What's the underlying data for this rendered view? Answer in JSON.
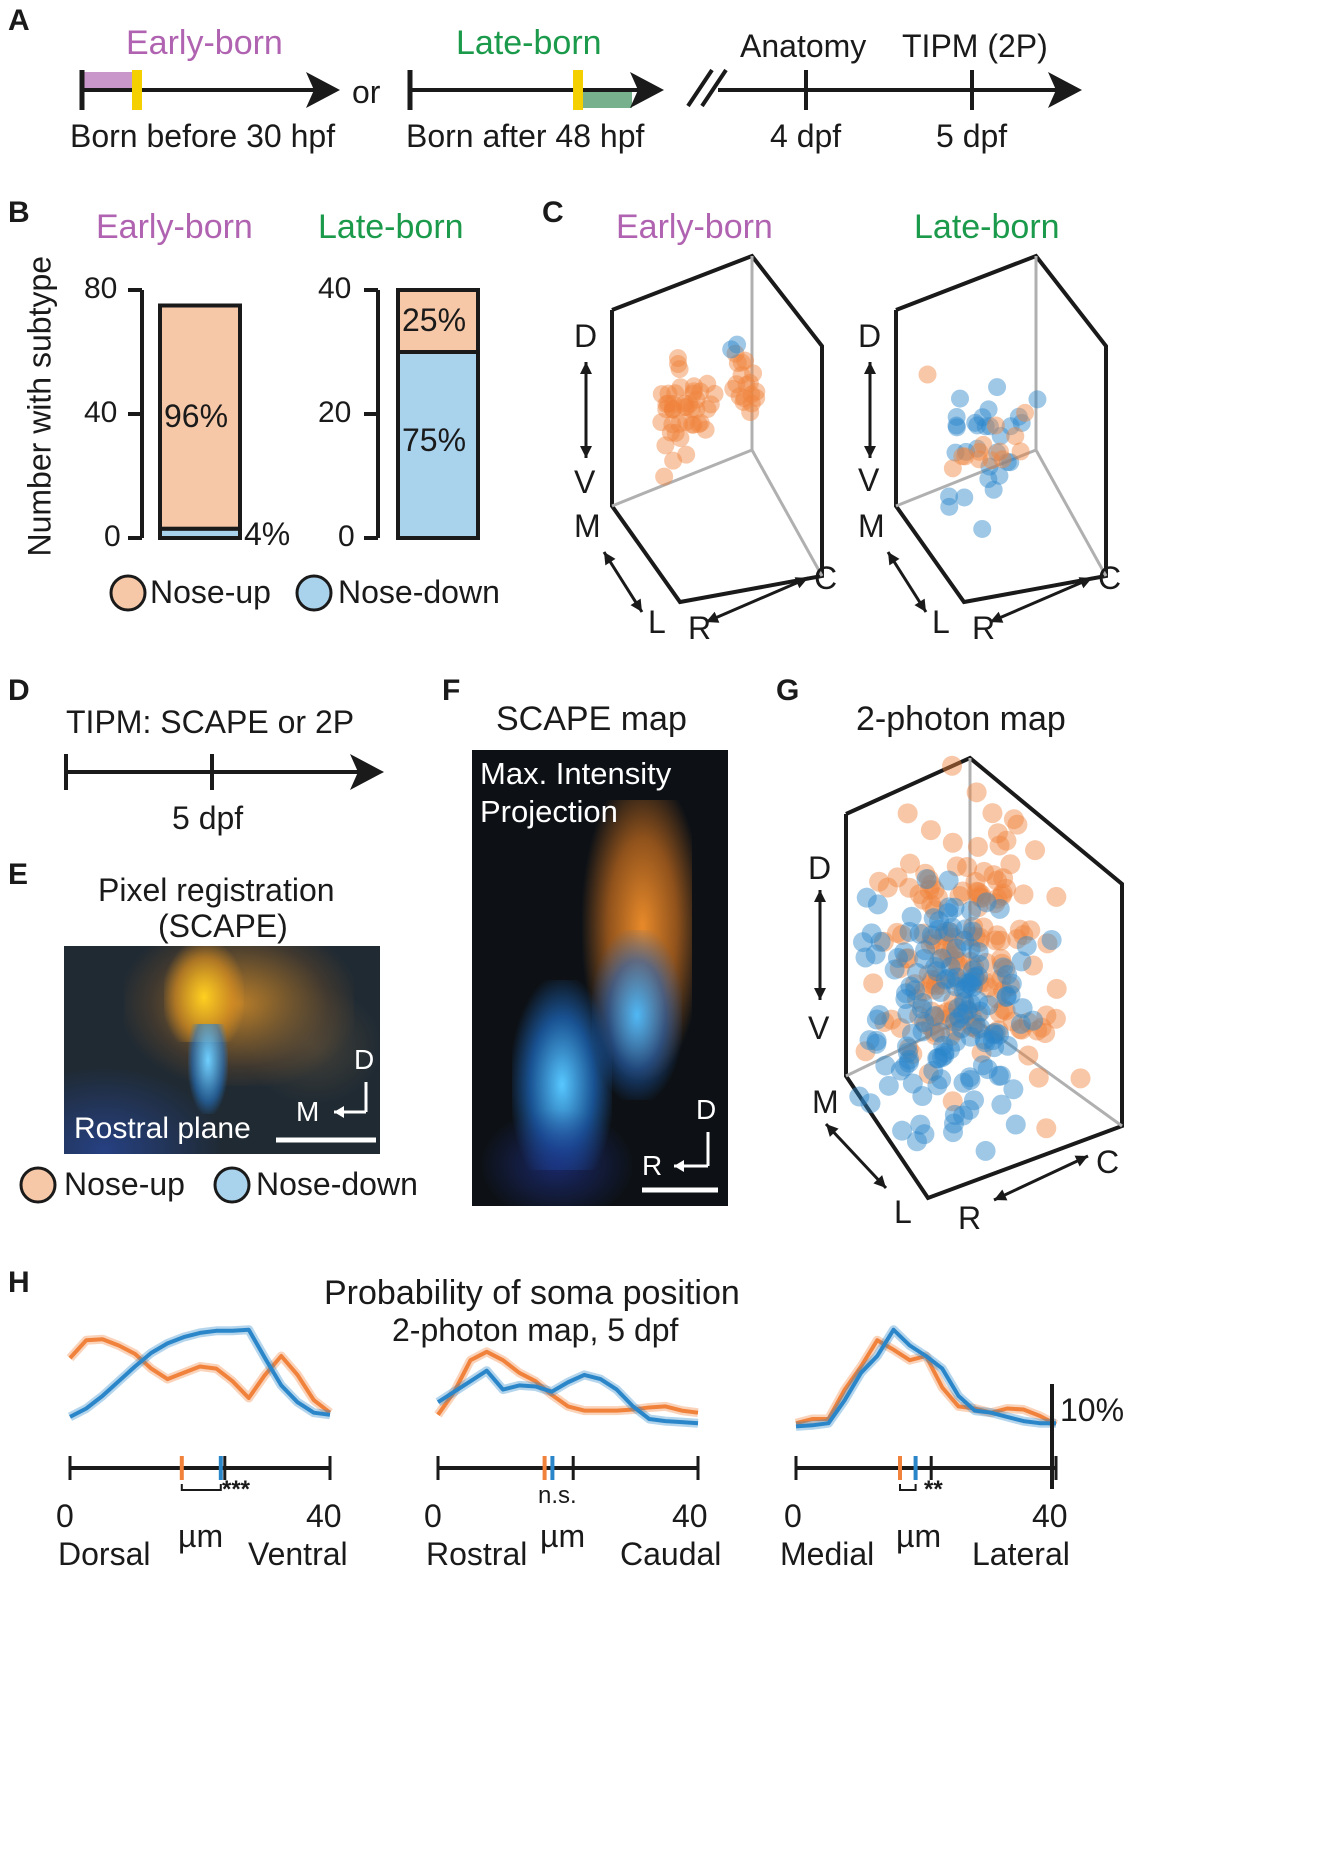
{
  "colors": {
    "nose_up": "#f0823c",
    "nose_up_fill": "#f6c8a8",
    "nose_down": "#2a86c9",
    "nose_down_fill": "#a9d2ec",
    "early": "#b063b0",
    "late": "#1a9a4a",
    "marker": "#f5d000"
  },
  "panelA": {
    "label": "A",
    "early": "Early-born",
    "late": "Late-born",
    "or": "or",
    "early_caption": "Born before 30 hpf",
    "late_caption": "Born after 48 hpf",
    "anatomy": "Anatomy",
    "tipm": "TIPM (2P)",
    "d4": "4 dpf",
    "d5": "5 dpf"
  },
  "panelB": {
    "label": "B",
    "early": "Early-born",
    "late": "Late-born",
    "ylabel": "Number with subtype",
    "early_ticks": [
      "0",
      "40",
      "80"
    ],
    "late_ticks": [
      "0",
      "20",
      "40"
    ],
    "early_up_pct": "96%",
    "early_down_pct": "4%",
    "late_up_pct": "25%",
    "late_down_pct": "75%",
    "legend_up": "Nose-up",
    "legend_down": "Nose-down"
  },
  "chart_data": [
    {
      "type": "bar",
      "stacked": true,
      "title": "Early-born",
      "ylabel": "Number with subtype",
      "ylim": [
        0,
        80
      ],
      "categories": [
        "Early-born"
      ],
      "series": [
        {
          "name": "Nose-down",
          "values": [
            3
          ]
        },
        {
          "name": "Nose-up",
          "values": [
            72
          ]
        }
      ]
    },
    {
      "type": "bar",
      "stacked": true,
      "title": "Late-born",
      "ylim": [
        0,
        40
      ],
      "categories": [
        "Late-born"
      ],
      "series": [
        {
          "name": "Nose-down",
          "values": [
            30
          ]
        },
        {
          "name": "Nose-up",
          "values": [
            10
          ]
        }
      ]
    },
    {
      "type": "line",
      "title": "Probability of soma position",
      "subtitle": "2-photon map, 5 dpf",
      "scale_bar": "10%",
      "xlabel": "µm",
      "x_ticks": [
        "0",
        "40"
      ],
      "x_end_labels": [
        "Dorsal",
        "Ventral"
      ],
      "significance": "***",
      "x": [
        0,
        2.5,
        5,
        7.5,
        10,
        12.5,
        15,
        17.5,
        20,
        22.5,
        25,
        27.5,
        30,
        32.5,
        35,
        37.5,
        40
      ],
      "series": [
        {
          "name": "Nose-up",
          "values": [
            7.8,
            9.5,
            9.6,
            9,
            8.2,
            6.8,
            5.8,
            6.4,
            7,
            6.8,
            5.6,
            4,
            6.2,
            8,
            6.2,
            3.8,
            2.6
          ]
        },
        {
          "name": "Nose-down",
          "values": [
            2.2,
            3,
            4.2,
            5.6,
            7,
            8.3,
            9.2,
            9.8,
            10.2,
            10.4,
            10.4,
            10.5,
            7.8,
            5.2,
            3.6,
            2.6,
            2.4
          ]
        }
      ]
    },
    {
      "type": "line",
      "xlabel": "µm",
      "x_ticks": [
        "0",
        "40"
      ],
      "x_end_labels": [
        "Rostral",
        "Caudal"
      ],
      "significance": "n.s.",
      "x": [
        0,
        2.5,
        5,
        7.5,
        10,
        12.5,
        15,
        17.5,
        20,
        22.5,
        25,
        27.5,
        30,
        32.5,
        35,
        37.5,
        40
      ],
      "series": [
        {
          "name": "Nose-up",
          "values": [
            2.4,
            4.6,
            7.6,
            8.4,
            7.6,
            6.4,
            5.6,
            4.3,
            3.2,
            2.8,
            2.8,
            2.8,
            2.9,
            3.1,
            3.2,
            2.8,
            2.6
          ]
        },
        {
          "name": "Nose-down",
          "values": [
            3.6,
            4.6,
            5.6,
            6.6,
            4.8,
            5.2,
            5.1,
            4.6,
            5.5,
            6.2,
            5.8,
            4.8,
            3.2,
            2,
            1.8,
            1.7,
            1.6
          ]
        }
      ]
    },
    {
      "type": "line",
      "xlabel": "µm",
      "x_ticks": [
        "0",
        "40"
      ],
      "x_end_labels": [
        "Medial",
        "Lateral"
      ],
      "significance": "**",
      "x": [
        0,
        2.5,
        5,
        7.5,
        10,
        12.5,
        15,
        17.5,
        20,
        22.5,
        25,
        27.5,
        30,
        32.5,
        35,
        37.5,
        40
      ],
      "series": [
        {
          "name": "Nose-up",
          "values": [
            1.6,
            2,
            2,
            4.8,
            7,
            9.5,
            8.6,
            7.6,
            8,
            5,
            3.2,
            3,
            2.6,
            3,
            2.9,
            2.3,
            1.5
          ]
        },
        {
          "name": "Nose-down",
          "values": [
            1.3,
            1.4,
            1.6,
            3.8,
            6.4,
            8,
            10.5,
            9,
            8,
            6.8,
            4.2,
            2.8,
            2.6,
            2.2,
            1.8,
            1.6,
            1.6
          ]
        }
      ]
    }
  ],
  "panelC": {
    "label": "C",
    "early": "Early-born",
    "late": "Late-born",
    "d": "D",
    "v": "V",
    "m": "M",
    "l": "L",
    "r": "R",
    "c": "C"
  },
  "panelD": {
    "label": "D",
    "title": "TIPM: SCAPE or 2P",
    "d5": "5 dpf"
  },
  "panelE": {
    "label": "E",
    "title1": "Pixel registration",
    "title2": "(SCAPE)",
    "plane": "Rostral plane",
    "d": "D",
    "m": "M",
    "legend_up": "Nose-up",
    "legend_down": "Nose-down"
  },
  "panelF": {
    "label": "F",
    "title": "SCAPE map",
    "line1": "Max. Intensity",
    "line2": "Projection",
    "d": "D",
    "r": "R"
  },
  "panelG": {
    "label": "G",
    "title": "2-photon map",
    "d": "D",
    "v": "V",
    "m": "M",
    "l": "L",
    "r": "R",
    "c": "C"
  },
  "panelH": {
    "label": "H",
    "title": "Probability of soma position",
    "subtitle": "2-photon map, 5 dpf",
    "scale": "10%",
    "charts": [
      {
        "zero": "0",
        "forty": "40",
        "um": "µm",
        "left": "Dorsal",
        "right": "Ventral",
        "sig": "***"
      },
      {
        "zero": "0",
        "forty": "40",
        "um": "µm",
        "left": "Rostral",
        "right": "Caudal",
        "sig": "n.s."
      },
      {
        "zero": "0",
        "forty": "40",
        "um": "µm",
        "left": "Medial",
        "right": "Lateral",
        "sig": "**"
      }
    ]
  }
}
